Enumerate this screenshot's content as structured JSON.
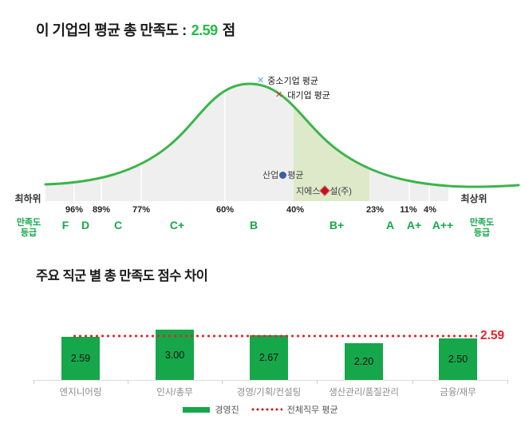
{
  "colors": {
    "accent_green": "#1fbe43",
    "curve_green": "#3bb54a",
    "bar_green": "#16a74b",
    "grade_green": "#18a84b",
    "band_fill": "#dde9c8",
    "area_fill": "#efefef",
    "avg_red": "#e8232a",
    "sme_marker_blue": "#45b5e8",
    "large_marker_red": "#c0392b",
    "industry_marker_navy": "#3a5fa0",
    "company_marker_red": "#d10b1e"
  },
  "section_distribution": {
    "title": {
      "prefix": "이 기업의 평균 총 만족도 :",
      "value": "2.59",
      "suffix": "점"
    },
    "markers": {
      "sme": {
        "glyph": "✕",
        "label": "중소기업 평균"
      },
      "large": {
        "glyph": "✕",
        "label": "대기업 평균"
      },
      "industry": {
        "before": "산업",
        "after": "평균"
      },
      "company": {
        "before": "지에스",
        "after": "설(주)"
      }
    },
    "axis": {
      "left_end": "최하위",
      "right_end": "최상위",
      "caption_line1": "만족도",
      "caption_line2": "등급",
      "percent_ticks": [
        "96%",
        "89%",
        "77%",
        "60%",
        "40%",
        "23%",
        "11%",
        "4%"
      ],
      "grades": [
        "F",
        "D",
        "C",
        "C+",
        "B",
        "B+",
        "A",
        "A+",
        "A++"
      ]
    }
  },
  "section_bars": {
    "title": "주요 직군 별 총 만족도 점수 차이",
    "categories": [
      "엔지니어링",
      "인사/총무",
      "경영/기획/컨설팅",
      "생산관리/품질관리",
      "금융/재무"
    ],
    "value_labels": [
      "2.59",
      "3.00",
      "2.67",
      "2.20",
      "2.50"
    ],
    "average_label": "2.59",
    "legend": {
      "bars": "경영진",
      "line": "전체직무 평균"
    }
  },
  "chart_data": [
    {
      "type": "area",
      "title": "이 기업의 평균 총 만족도 : 2.59 점",
      "company_score": 2.59,
      "x_axis": {
        "left_label": "최하위",
        "right_label": "최상위",
        "axis_caption": "만족도 등급",
        "percent_ticks": [
          "96%",
          "89%",
          "77%",
          "60%",
          "40%",
          "23%",
          "11%",
          "4%"
        ],
        "grade_labels": [
          "F",
          "D",
          "C",
          "C+",
          "B",
          "B+",
          "A",
          "A+",
          "A++"
        ]
      },
      "curve": "normal-distribution bell curve, gray filled, peak between B and 60% tick",
      "highlighted_band": {
        "grade": "B+",
        "between_ticks": [
          "40%",
          "23%"
        ],
        "fill": "#dde9c8"
      },
      "markers": [
        {
          "label": "중소기업 평균",
          "marker": "x",
          "color": "#45b5e8",
          "position_hint": "at curve peak"
        },
        {
          "label": "대기업 평균",
          "marker": "x",
          "color": "#c0392b",
          "position_hint": "just right of peak"
        },
        {
          "label": "산업 평균",
          "marker": "circle",
          "color": "#3a5fa0",
          "position_hint": "lower middle, left of highlighted band"
        },
        {
          "label": "지에스건설(주)",
          "marker": "diamond",
          "color": "#d10b1e",
          "position_hint": "inside highlighted B+ band"
        }
      ],
      "legend_position": "none",
      "grid": false
    },
    {
      "type": "bar",
      "title": "주요 직군 별 총 만족도 점수 차이",
      "categories": [
        "엔지니어링",
        "인사/총무",
        "경영/기획/컨설팅",
        "생산관리/품질관리",
        "금융/재무"
      ],
      "values": [
        2.59,
        3.0,
        2.67,
        2.2,
        2.5
      ],
      "bar_color": "#16a74b",
      "average_line": {
        "value": 2.59,
        "label": "2.59",
        "style": "red-dotted"
      },
      "legend": [
        {
          "label": "경영진",
          "type": "bar",
          "color": "#16a74b"
        },
        {
          "label": "전체직무 평균",
          "type": "dotted-line",
          "color": "#e60000"
        }
      ],
      "ylabel": "",
      "xlabel": "",
      "ylim": [
        0,
        3.2
      ],
      "grid": false,
      "legend_position": "bottom-center"
    }
  ]
}
